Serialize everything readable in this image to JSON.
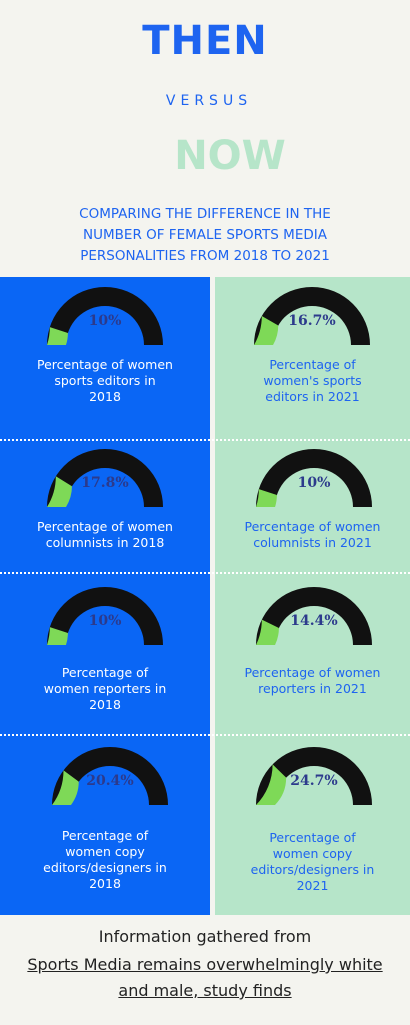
{
  "header": {
    "then": "THEN",
    "versus": "VERSUS",
    "now": "NOW",
    "subtitle_line1": "COMPARING THE DIFFERENCE IN THE",
    "subtitle_line2": "NUMBER OF FEMALE SPORTS MEDIA",
    "subtitle_line3": "PERSONALITIES FROM 2018 TO 2021"
  },
  "colors": {
    "blue": "#0a66f5",
    "mint": "#b6e5c9",
    "gauge_fill": "#7ed957",
    "gauge_track": "#111111"
  },
  "rows": [
    {
      "left": {
        "value": "10%",
        "fraction": 0.1,
        "label": [
          "Percentage of women",
          "sports editors in",
          "2018"
        ]
      },
      "right": {
        "value": "16.7%",
        "fraction": 0.167,
        "label": [
          "Percentage of",
          "women's sports",
          "editors in 2021"
        ]
      }
    },
    {
      "left": {
        "value": "17.8%",
        "fraction": 0.178,
        "label": [
          "Percentage of women",
          "columnists in 2018"
        ]
      },
      "right": {
        "value": "10%",
        "fraction": 0.1,
        "label": [
          "Percentage of women",
          "columnists in 2021"
        ]
      }
    },
    {
      "left": {
        "value": "10%",
        "fraction": 0.1,
        "label": [
          "Percentage of",
          "women reporters in",
          "2018"
        ]
      },
      "right": {
        "value": "14.4%",
        "fraction": 0.144,
        "label": [
          "Percentage of women",
          "reporters in 2021"
        ]
      }
    },
    {
      "left": {
        "value": "20.4%",
        "fraction": 0.204,
        "label": [
          "Percentage of",
          "women copy",
          "editors/designers in",
          "2018"
        ]
      },
      "right": {
        "value": "24.7%",
        "fraction": 0.247,
        "label": [
          "Percentage of",
          "women copy",
          "editors/designers in",
          "2021"
        ]
      }
    }
  ],
  "footer": {
    "line1": "Information gathered from",
    "link_line1": "Sports Media remains overwhelmingly white",
    "link_line2": "and male, study finds"
  }
}
